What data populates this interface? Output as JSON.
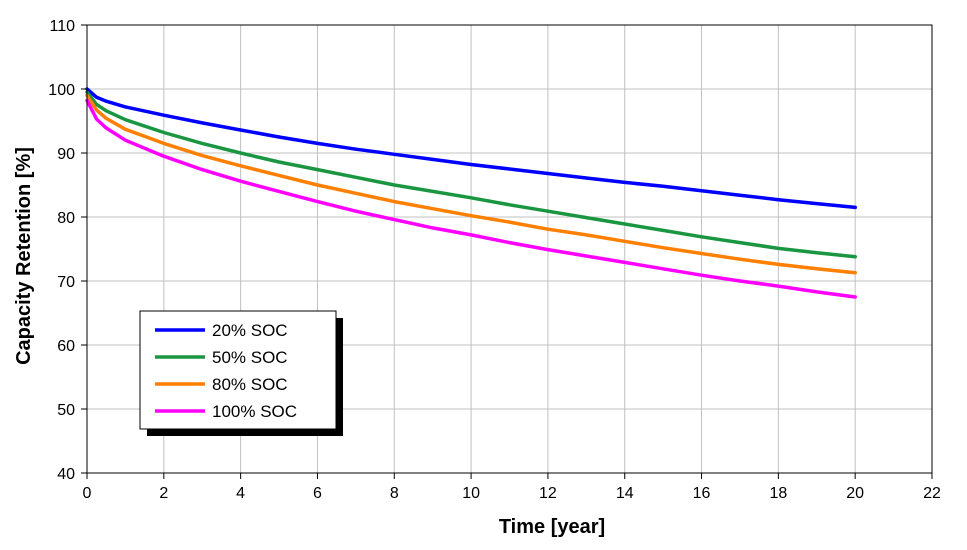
{
  "chart_data": {
    "type": "line",
    "xlabel": "Time [year]",
    "ylabel": "Capacity Retention [%]",
    "xlim": [
      0,
      22
    ],
    "ylim": [
      40,
      110
    ],
    "xticks": [
      0,
      2,
      4,
      6,
      8,
      10,
      12,
      14,
      16,
      18,
      20,
      22
    ],
    "yticks": [
      40,
      50,
      60,
      70,
      80,
      90,
      100,
      110
    ],
    "grid": true,
    "legend_position": "lower-left",
    "x": [
      0,
      0.25,
      0.5,
      1,
      2,
      3,
      4,
      5,
      6,
      7,
      8,
      9,
      10,
      11,
      12,
      13,
      14,
      15,
      16,
      17,
      18,
      19,
      20
    ],
    "series": [
      {
        "name": "20% SOC",
        "color": "#0000ff",
        "values": [
          100,
          98.7,
          98.1,
          97.2,
          95.9,
          94.7,
          93.6,
          92.5,
          91.5,
          90.6,
          89.8,
          89.0,
          88.2,
          87.5,
          86.8,
          86.1,
          85.4,
          84.8,
          84.1,
          83.4,
          82.7,
          82.1,
          81.5
        ]
      },
      {
        "name": "50% SOC",
        "color": "#1a9641",
        "values": [
          99.5,
          97.6,
          96.6,
          95.2,
          93.2,
          91.5,
          90.0,
          88.6,
          87.4,
          86.2,
          85.0,
          84.0,
          83.0,
          81.9,
          80.9,
          79.9,
          78.9,
          77.9,
          76.9,
          76.0,
          75.1,
          74.4,
          73.8
        ]
      },
      {
        "name": "80% SOC",
        "color": "#ff7f00",
        "values": [
          99.0,
          96.7,
          95.4,
          93.7,
          91.5,
          89.6,
          88.0,
          86.5,
          85.0,
          83.7,
          82.4,
          81.3,
          80.2,
          79.2,
          78.1,
          77.2,
          76.2,
          75.2,
          74.3,
          73.4,
          72.6,
          71.9,
          71.3
        ]
      },
      {
        "name": "100% SOC",
        "color": "#ff00ff",
        "values": [
          98.2,
          95.3,
          93.9,
          92.0,
          89.5,
          87.4,
          85.6,
          84.0,
          82.4,
          80.9,
          79.6,
          78.3,
          77.2,
          76.0,
          74.9,
          73.9,
          72.9,
          71.9,
          70.9,
          70.0,
          69.2,
          68.3,
          67.5
        ]
      }
    ]
  }
}
